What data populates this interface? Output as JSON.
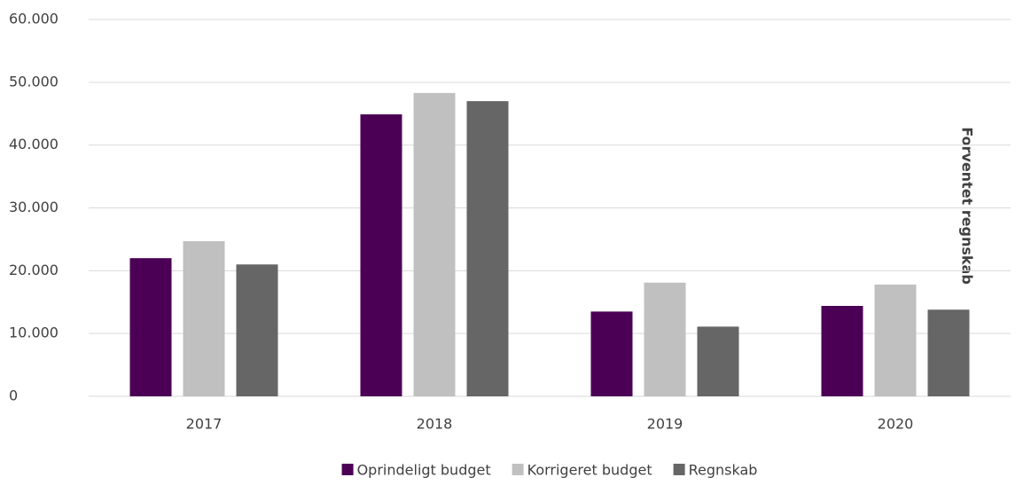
{
  "chart_data": {
    "type": "bar",
    "categories": [
      "2017",
      "2018",
      "2019",
      "2020"
    ],
    "series": [
      {
        "name": "Oprindeligt budget",
        "color": "#4b0055",
        "values": [
          22000,
          44900,
          13500,
          14400
        ]
      },
      {
        "name": "Korrigeret budget",
        "color": "#c0c0c0",
        "values": [
          24700,
          48300,
          18100,
          17800
        ]
      },
      {
        "name": "Regnskab",
        "color": "#666666",
        "values": [
          21000,
          47000,
          11100,
          13800
        ]
      }
    ],
    "ylim": [
      0,
      60000
    ],
    "yticks": [
      0,
      {
        "value": 10000,
        "label": "10.000"
      },
      {
        "value": 20000,
        "label": "20.000"
      },
      {
        "value": 30000,
        "label": "30.000"
      },
      {
        "value": 40000,
        "label": "40.000"
      },
      {
        "value": 50000,
        "label": "50.000"
      },
      {
        "value": 60000,
        "label": "60.000"
      }
    ],
    "grid": true,
    "legend": "bottom",
    "annotations": [
      "Forventet regnskab"
    ]
  }
}
